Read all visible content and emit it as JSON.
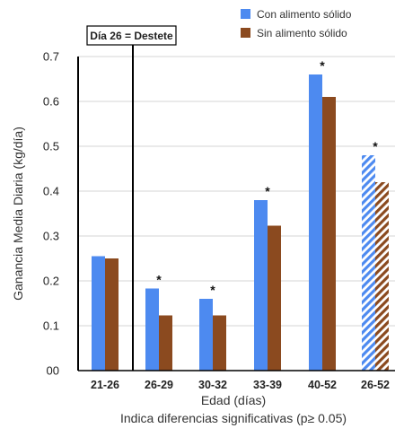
{
  "chart_data": {
    "type": "bar",
    "categories": [
      "21-26",
      "26-29",
      "30-32",
      "33-39",
      "40-52",
      "26-52"
    ],
    "series": [
      {
        "name": "Con alimento sólido",
        "color": "#4d8af0",
        "values": [
          0.255,
          0.183,
          0.16,
          0.38,
          0.66,
          0.48
        ]
      },
      {
        "name": "Sin alimento sólido",
        "color": "#8b4a1f",
        "values": [
          0.25,
          0.123,
          0.123,
          0.323,
          0.61,
          0.42
        ]
      }
    ],
    "hatched_categories": [
      "26-52"
    ],
    "significant": [
      false,
      true,
      true,
      true,
      true,
      true
    ],
    "significance_marker": "*",
    "ylim": [
      0,
      0.7
    ],
    "yticks": [
      0,
      0.1,
      0.2,
      0.3,
      0.4,
      0.5,
      0.6,
      0.7
    ],
    "ytick_labels": [
      "00",
      "0.1",
      "0.2",
      "0.3",
      "0.4",
      "0.5",
      "0.6",
      "0.7"
    ],
    "xlabel": "Edad (días)",
    "ylabel": "Ganancia Media Diaria (kg/día)",
    "footnote": "Indica diferencias significativas (p≥ 0.05)",
    "annotation": "Día 26 = Destete",
    "grid": true,
    "legend_position": "top-right"
  }
}
